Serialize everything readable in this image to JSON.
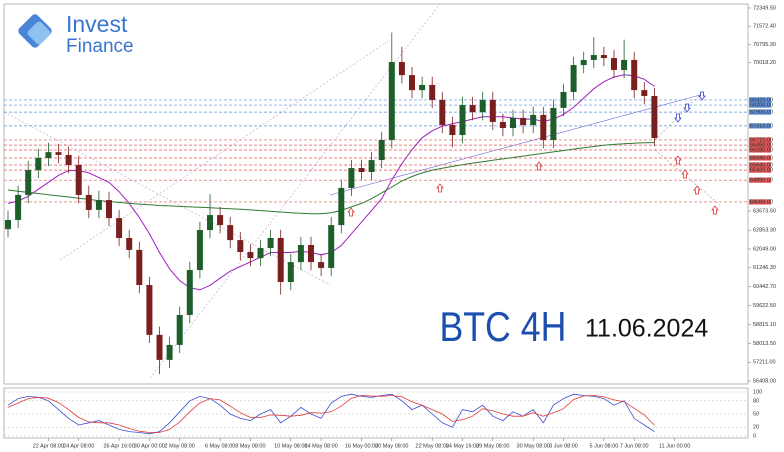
{
  "brand": {
    "line1": "Invest",
    "line2": "Finance"
  },
  "chart_data": [
    {
      "type": "candlestick",
      "title": "BTC 4H",
      "subtitle": "11.06.2024",
      "up_color": "#1e5e2a",
      "down_color": "#7a1f1f",
      "ylim": [
        56280,
        72520
      ],
      "yticks": [
        {
          "value": 72349.5,
          "label": "72349.50"
        },
        {
          "value": 71572.4,
          "label": "71572.40"
        },
        {
          "value": 70795.3,
          "label": "70795.30"
        },
        {
          "value": 70018.2,
          "label": "70018.20"
        },
        {
          "value": 63673.5,
          "label": "63673.50"
        },
        {
          "value": 62853.3,
          "label": "62853.30"
        },
        {
          "value": 62049,
          "label": "62049.00"
        },
        {
          "value": 61246.3,
          "label": "61246.30"
        },
        {
          "value": 60442.7,
          "label": "60442.70"
        },
        {
          "value": 59622.5,
          "label": "59622.50"
        },
        {
          "value": 58815.1,
          "label": "58815.10"
        },
        {
          "value": 58013.5,
          "label": "58013.50"
        },
        {
          "value": 57211,
          "label": "57211.00"
        },
        {
          "value": 56408,
          "label": "56408.00"
        }
      ],
      "open": [
        62900,
        63290,
        64360,
        65420,
        65940,
        66190,
        66070,
        65640,
        64360,
        63720,
        64140,
        63370,
        62520,
        62010,
        60510,
        58380,
        57310,
        57950,
        59230,
        61150,
        62860,
        63500,
        63070,
        62430,
        61920,
        61660,
        62090,
        62520,
        60640,
        61490,
        62220,
        61490,
        61240,
        63070,
        64660,
        65510,
        65340,
        65850,
        66710,
        70040,
        69480,
        68840,
        69060,
        68420,
        67350,
        66920,
        68200,
        67900,
        68420,
        67480,
        67220,
        67650,
        67350,
        67780,
        66710,
        68080,
        68760,
        69910,
        70130,
        70340,
        70210,
        69700,
        70130,
        68840,
        68590,
        null,
        null
      ],
      "high": [
        63690,
        64760,
        65820,
        66340,
        66590,
        66540,
        66420,
        66040,
        64760,
        64540,
        64490,
        63720,
        62870,
        62360,
        60860,
        58730,
        58300,
        59580,
        61500,
        63210,
        64400,
        63850,
        63420,
        62780,
        62270,
        62440,
        62870,
        62870,
        61840,
        62570,
        62570,
        61840,
        63420,
        65010,
        65860,
        65860,
        66200,
        67060,
        71300,
        70700,
        69830,
        69410,
        69410,
        68770,
        67700,
        68550,
        68550,
        68770,
        68770,
        67830,
        68000,
        68000,
        68130,
        68130,
        68430,
        69110,
        70260,
        70480,
        71100,
        70690,
        70560,
        71000,
        70480,
        69190,
        68940,
        null,
        null
      ],
      "low": [
        62550,
        62940,
        64010,
        65070,
        65590,
        65720,
        65290,
        64010,
        63370,
        63370,
        63020,
        62170,
        61660,
        60160,
        58030,
        56700,
        56960,
        57600,
        58880,
        60800,
        62510,
        62720,
        62080,
        61570,
        61310,
        61310,
        61740,
        60100,
        60290,
        61140,
        61140,
        60890,
        60890,
        62720,
        64310,
        64990,
        64990,
        65500,
        66360,
        69130,
        68490,
        68490,
        68070,
        67000,
        66400,
        66570,
        67550,
        67550,
        67130,
        66870,
        66870,
        67000,
        67000,
        66360,
        66360,
        67730,
        68410,
        69560,
        69780,
        69860,
        69350,
        69350,
        68490,
        68240,
        66440,
        null,
        null
      ],
      "close": [
        63290,
        64360,
        65420,
        65940,
        66190,
        66070,
        65640,
        64360,
        63720,
        64140,
        63370,
        62520,
        62010,
        60510,
        58380,
        57310,
        57950,
        59230,
        61150,
        62860,
        63500,
        63070,
        62430,
        61920,
        61660,
        62090,
        62520,
        60640,
        61490,
        62220,
        61490,
        61240,
        63070,
        64660,
        65510,
        65340,
        65850,
        66710,
        70040,
        69480,
        68840,
        69060,
        68420,
        67350,
        66920,
        68200,
        67900,
        68420,
        67480,
        67220,
        67650,
        67350,
        67780,
        66710,
        68080,
        68760,
        69910,
        70130,
        70340,
        70210,
        69700,
        70130,
        68840,
        68590,
        66790,
        null,
        null
      ],
      "overlays": [
        {
          "color": "#a020c0",
          "values": [
            64000,
            64100,
            64300,
            64600,
            64900,
            65200,
            65400,
            65400,
            65300,
            65100,
            64900,
            64500,
            64000,
            63400,
            62700,
            61900,
            61200,
            60700,
            60400,
            60300,
            60500,
            60800,
            61100,
            61300,
            61500,
            61700,
            61900,
            61900,
            61900,
            61950,
            61900,
            61800,
            61900,
            62200,
            62700,
            63200,
            63700,
            64200,
            65000,
            65700,
            66300,
            66800,
            67100,
            67300,
            67400,
            67500,
            67600,
            67700,
            67700,
            67700,
            67650,
            67600,
            67600,
            67500,
            67600,
            67800,
            68100,
            68500,
            68900,
            69200,
            69400,
            69500,
            69450,
            69300,
            69000,
            null,
            null
          ]
        },
        {
          "color": "#2e7d32",
          "values": [
            64570,
            64520,
            64470,
            64420,
            64370,
            64320,
            64270,
            64220,
            64170,
            64120,
            64080,
            64040,
            64000,
            63970,
            63940,
            63910,
            63890,
            63870,
            63850,
            63830,
            63810,
            63790,
            63770,
            63750,
            63720,
            63690,
            63660,
            63630,
            63600,
            63580,
            63560,
            63560,
            63600,
            63700,
            63850,
            64000,
            64200,
            64450,
            64700,
            64950,
            65150,
            65300,
            65420,
            65500,
            65580,
            65650,
            65720,
            65780,
            65840,
            65900,
            65960,
            66020,
            66080,
            66140,
            66200,
            66260,
            66320,
            66380,
            66430,
            66480,
            66520,
            66550,
            66570,
            66590,
            66600,
            null,
            null
          ]
        }
      ],
      "levels": [
        {
          "value": 68420,
          "label": "68420.00",
          "color": "#5b8fd8"
        },
        {
          "value": 68200,
          "label": "68200.00",
          "color": "#5b8fd8"
        },
        {
          "value": 67900,
          "label": "67900.00",
          "color": "#5b8fd8"
        },
        {
          "value": 67310,
          "label": "67310.00",
          "color": "#5b8fd8"
        },
        {
          "value": 66710,
          "label": "66710.00",
          "color": "#e05555"
        },
        {
          "value": 66490,
          "label": "66490.00",
          "color": "#e05555"
        },
        {
          "value": 66280,
          "label": "66280.00",
          "color": "#e05555"
        },
        {
          "value": 65940,
          "label": "65940.00",
          "color": "#e05555"
        },
        {
          "value": 65640,
          "label": "65640.00",
          "color": "#e05555"
        },
        {
          "value": 65420,
          "label": "65420.00",
          "color": "#e05555"
        },
        {
          "value": 64990,
          "label": "64990.00",
          "color": "#e05555"
        },
        {
          "value": 64060,
          "label": "64060.00",
          "color": "#e05555"
        }
      ]
    },
    {
      "type": "line",
      "ylim": [
        0,
        100
      ],
      "yticks": [
        100,
        80,
        50,
        20,
        0
      ],
      "categories": [
        null,
        null,
        null,
        null,
        "22 Apr 08:00",
        null,
        null,
        "24 Apr 08:00",
        null,
        null,
        null,
        "26 Apr 16:00",
        null,
        null,
        "30 Apr 00:00",
        null,
        null,
        "2 May 08:00",
        null,
        null,
        null,
        "6 May 08:00",
        null,
        null,
        "8 May 08:00",
        null,
        null,
        null,
        "10 May 08:00",
        null,
        null,
        "14 May 08:00",
        null,
        null,
        null,
        "16 May 00:00",
        null,
        null,
        "20 May 08:00",
        null,
        null,
        null,
        "22 May 08:00",
        null,
        null,
        "24 May 16:00",
        null,
        null,
        "29 May 08:00",
        null,
        null,
        null,
        "30 May 08:00",
        null,
        null,
        "3 Jun 08:00",
        null,
        null,
        null,
        "5 Jun 08:00",
        null,
        null,
        "7 Jun 08:00",
        null,
        null,
        null,
        "11 Jun 00:00"
      ],
      "series": [
        {
          "color": "#3b4fd0",
          "values": [
            70,
            85,
            90,
            88,
            80,
            60,
            40,
            25,
            30,
            35,
            25,
            15,
            10,
            8,
            5,
            10,
            30,
            55,
            80,
            90,
            85,
            70,
            50,
            40,
            35,
            50,
            60,
            30,
            45,
            65,
            50,
            40,
            75,
            90,
            95,
            90,
            88,
            92,
            95,
            80,
            60,
            70,
            50,
            30,
            20,
            60,
            55,
            70,
            45,
            35,
            55,
            45,
            60,
            30,
            70,
            85,
            95,
            92,
            90,
            85,
            70,
            80,
            40,
            25,
            10,
            null,
            null
          ]
        },
        {
          "color": "#e03a3a",
          "values": [
            65,
            75,
            85,
            88,
            86,
            76,
            60,
            42,
            32,
            30,
            30,
            25,
            17,
            11,
            8,
            8,
            15,
            32,
            55,
            75,
            85,
            82,
            68,
            53,
            42,
            42,
            48,
            47,
            45,
            47,
            53,
            52,
            55,
            68,
            86,
            92,
            91,
            90,
            92,
            89,
            78,
            70,
            60,
            50,
            33,
            37,
            45,
            62,
            57,
            50,
            45,
            45,
            53,
            45,
            53,
            62,
            83,
            91,
            92,
            89,
            82,
            78,
            63,
            48,
            25,
            null,
            null
          ]
        }
      ]
    }
  ]
}
